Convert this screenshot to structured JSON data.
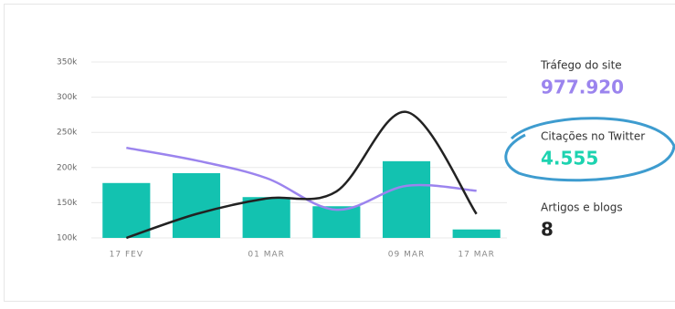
{
  "chart_data": {
    "type": "combo",
    "categories": [
      "17 FEV",
      null,
      "01 MAR",
      null,
      "09 MAR",
      "17 MAR"
    ],
    "series": [
      {
        "type": "bar",
        "color": "#13c2b0",
        "values": [
          178000,
          192000,
          158000,
          145000,
          209000,
          112000
        ]
      },
      {
        "type": "line",
        "color": "#9b84ee",
        "values": [
          228000,
          210000,
          185000,
          140000,
          174000,
          167000
        ]
      },
      {
        "type": "line",
        "color": "#222222",
        "values": [
          100000,
          134000,
          156000,
          166000,
          279000,
          134000
        ]
      }
    ],
    "ylim": [
      100000,
      350000
    ],
    "yticks": [
      {
        "value": 100000,
        "label": "100k"
      },
      {
        "value": 150000,
        "label": "150k"
      },
      {
        "value": 200000,
        "label": "200k"
      },
      {
        "value": 250000,
        "label": "250k"
      },
      {
        "value": 300000,
        "label": "300k"
      },
      {
        "value": 350000,
        "label": "350k"
      }
    ],
    "grid": true
  },
  "stats": [
    {
      "label": "Tráfego do site",
      "value": "977.920",
      "color": "#9b84ee"
    },
    {
      "label": "Citações no Twitter",
      "value": "4.555",
      "color": "#1dd3b0"
    },
    {
      "label": "Artigos e blogs",
      "value": "8",
      "color": "#222222"
    }
  ]
}
